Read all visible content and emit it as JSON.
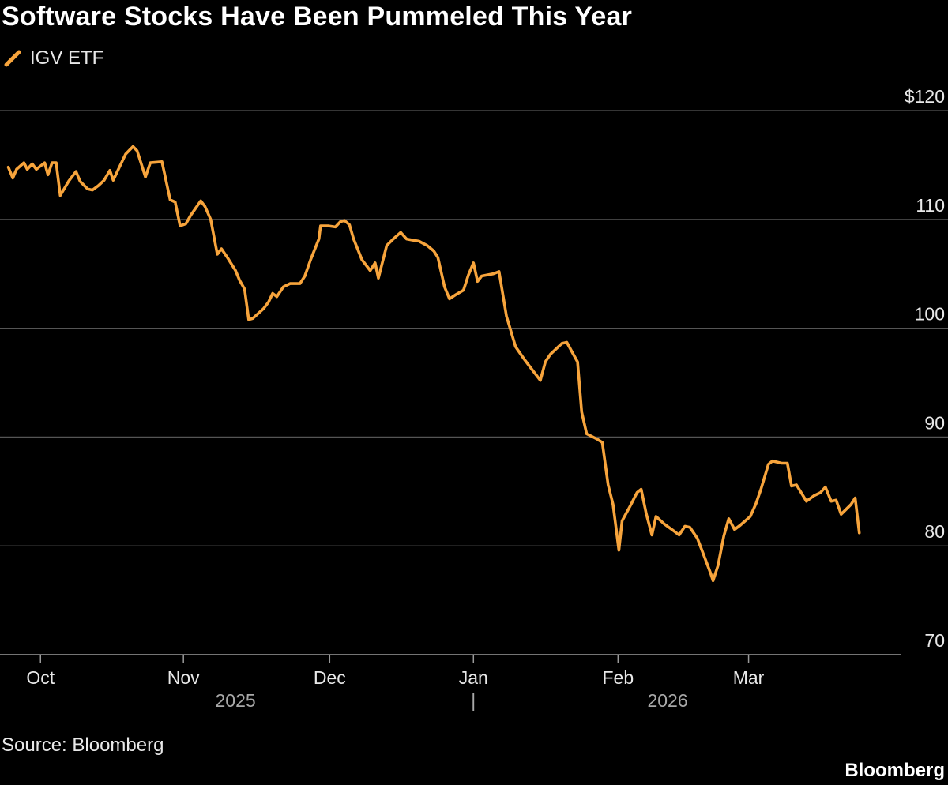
{
  "title": "Software Stocks Have Been Pummeled This Year",
  "source": "Source: Bloomberg",
  "brand": "Bloomberg",
  "colors": {
    "line": "#F7A43C",
    "grid": "#555555",
    "axis": "#9a9a9a",
    "text": "#e8e8e8"
  },
  "chart_data": {
    "type": "line",
    "title": "Software Stocks Have Been Pummeled This Year",
    "series": [
      {
        "name": "IGV ETF",
        "values": [
          [
            0.0,
            114.8
          ],
          [
            0.55,
            113.8
          ],
          [
            1.0,
            114.6
          ],
          [
            1.9,
            115.2
          ],
          [
            2.3,
            114.6
          ],
          [
            2.9,
            115.1
          ],
          [
            3.4,
            114.6
          ],
          [
            4.4,
            115.2
          ],
          [
            4.8,
            114.1
          ],
          [
            5.3,
            115.2
          ],
          [
            5.8,
            115.2
          ],
          [
            6.3,
            112.2
          ],
          [
            7.3,
            113.5
          ],
          [
            8.2,
            114.4
          ],
          [
            8.7,
            113.5
          ],
          [
            9.6,
            112.8
          ],
          [
            10.2,
            112.7
          ],
          [
            10.9,
            113.1
          ],
          [
            11.6,
            113.6
          ],
          [
            12.3,
            114.5
          ],
          [
            12.7,
            113.6
          ],
          [
            14.2,
            116.0
          ],
          [
            15.1,
            116.7
          ],
          [
            15.6,
            116.3
          ],
          [
            16.6,
            113.9
          ],
          [
            17.2,
            115.2
          ],
          [
            18.6,
            115.3
          ],
          [
            19.6,
            111.8
          ],
          [
            20.2,
            111.6
          ],
          [
            20.8,
            109.4
          ],
          [
            21.5,
            109.6
          ],
          [
            22.1,
            110.4
          ],
          [
            23.3,
            111.7
          ],
          [
            23.8,
            111.2
          ],
          [
            24.5,
            110.0
          ],
          [
            25.3,
            106.8
          ],
          [
            25.8,
            107.3
          ],
          [
            26.6,
            106.4
          ],
          [
            27.5,
            105.3
          ],
          [
            28.0,
            104.4
          ],
          [
            28.6,
            103.6
          ],
          [
            29.1,
            100.8
          ],
          [
            29.6,
            100.9
          ],
          [
            30.9,
            101.8
          ],
          [
            31.5,
            102.4
          ],
          [
            32.0,
            103.2
          ],
          [
            32.5,
            102.9
          ],
          [
            33.3,
            103.8
          ],
          [
            34.1,
            104.1
          ],
          [
            35.3,
            104.1
          ],
          [
            35.9,
            104.8
          ],
          [
            36.6,
            106.3
          ],
          [
            37.6,
            108.2
          ],
          [
            37.8,
            109.4
          ],
          [
            38.8,
            109.4
          ],
          [
            39.6,
            109.3
          ],
          [
            40.2,
            109.8
          ],
          [
            40.7,
            109.9
          ],
          [
            41.3,
            109.5
          ],
          [
            41.8,
            108.2
          ],
          [
            42.8,
            106.3
          ],
          [
            43.8,
            105.3
          ],
          [
            44.4,
            106.0
          ],
          [
            44.8,
            104.6
          ],
          [
            45.8,
            107.6
          ],
          [
            46.6,
            108.2
          ],
          [
            47.5,
            108.8
          ],
          [
            48.2,
            108.2
          ],
          [
            48.9,
            108.1
          ],
          [
            49.7,
            108.0
          ],
          [
            50.7,
            107.6
          ],
          [
            51.5,
            107.1
          ],
          [
            52.0,
            106.5
          ],
          [
            52.8,
            103.8
          ],
          [
            53.4,
            102.7
          ],
          [
            54.2,
            103.1
          ],
          [
            55.1,
            103.5
          ],
          [
            55.7,
            104.9
          ],
          [
            56.3,
            106.0
          ],
          [
            56.8,
            104.3
          ],
          [
            57.3,
            104.8
          ],
          [
            58.7,
            105.0
          ],
          [
            59.4,
            105.2
          ],
          [
            60.3,
            101.1
          ],
          [
            61.4,
            98.3
          ],
          [
            62.4,
            97.2
          ],
          [
            63.4,
            96.2
          ],
          [
            64.4,
            95.2
          ],
          [
            65.0,
            96.9
          ],
          [
            65.6,
            97.6
          ],
          [
            67.0,
            98.6
          ],
          [
            67.6,
            98.7
          ],
          [
            68.4,
            97.6
          ],
          [
            68.9,
            96.9
          ],
          [
            69.4,
            92.3
          ],
          [
            70.0,
            90.3
          ],
          [
            71.3,
            89.8
          ],
          [
            71.9,
            89.5
          ],
          [
            72.6,
            85.6
          ],
          [
            73.2,
            83.8
          ],
          [
            73.9,
            79.6
          ],
          [
            74.3,
            82.3
          ],
          [
            75.3,
            83.7
          ],
          [
            76.1,
            84.9
          ],
          [
            76.6,
            85.2
          ],
          [
            77.2,
            83.0
          ],
          [
            77.9,
            81.0
          ],
          [
            78.4,
            82.7
          ],
          [
            79.4,
            82.0
          ],
          [
            80.5,
            81.4
          ],
          [
            81.2,
            81.0
          ],
          [
            81.9,
            81.8
          ],
          [
            82.5,
            81.7
          ],
          [
            83.4,
            80.7
          ],
          [
            84.2,
            79.1
          ],
          [
            85.0,
            77.5
          ],
          [
            85.3,
            76.8
          ],
          [
            85.9,
            78.2
          ],
          [
            86.6,
            80.9
          ],
          [
            87.2,
            82.5
          ],
          [
            87.9,
            81.5
          ],
          [
            88.6,
            81.9
          ],
          [
            89.8,
            82.7
          ],
          [
            90.5,
            83.9
          ],
          [
            91.1,
            85.2
          ],
          [
            92.0,
            87.5
          ],
          [
            92.5,
            87.8
          ],
          [
            93.6,
            87.6
          ],
          [
            94.3,
            87.6
          ],
          [
            94.8,
            85.5
          ],
          [
            95.4,
            85.6
          ],
          [
            96.6,
            84.1
          ],
          [
            97.5,
            84.6
          ],
          [
            98.3,
            84.9
          ],
          [
            98.9,
            85.4
          ],
          [
            99.6,
            84.1
          ],
          [
            100.2,
            84.2
          ],
          [
            100.8,
            82.9
          ],
          [
            102.0,
            83.8
          ],
          [
            102.5,
            84.4
          ],
          [
            103.0,
            81.2
          ]
        ]
      }
    ],
    "x_ticks": [
      {
        "pos": 3.9,
        "label": "Oct"
      },
      {
        "pos": 21.2,
        "label": "Nov"
      },
      {
        "pos": 38.9,
        "label": "Dec"
      },
      {
        "pos": 56.3,
        "label": "Jan"
      },
      {
        "pos": 73.8,
        "label": "Feb"
      },
      {
        "pos": 89.6,
        "label": "Mar"
      }
    ],
    "x_year_labels": [
      {
        "pos": 27.5,
        "label": "2025"
      },
      {
        "pos": 79.8,
        "label": "2026"
      }
    ],
    "x_year_separator": {
      "pos": 56.3,
      "label": "|"
    },
    "xlim": [
      -1,
      108
    ],
    "ylim": [
      70,
      120
    ],
    "y_ticks": [
      70,
      80,
      90,
      100,
      110,
      120
    ],
    "y_tick_labels": [
      "70",
      "80",
      "90",
      "100",
      "110",
      "$120"
    ],
    "grid": true,
    "legend": "top-left"
  }
}
